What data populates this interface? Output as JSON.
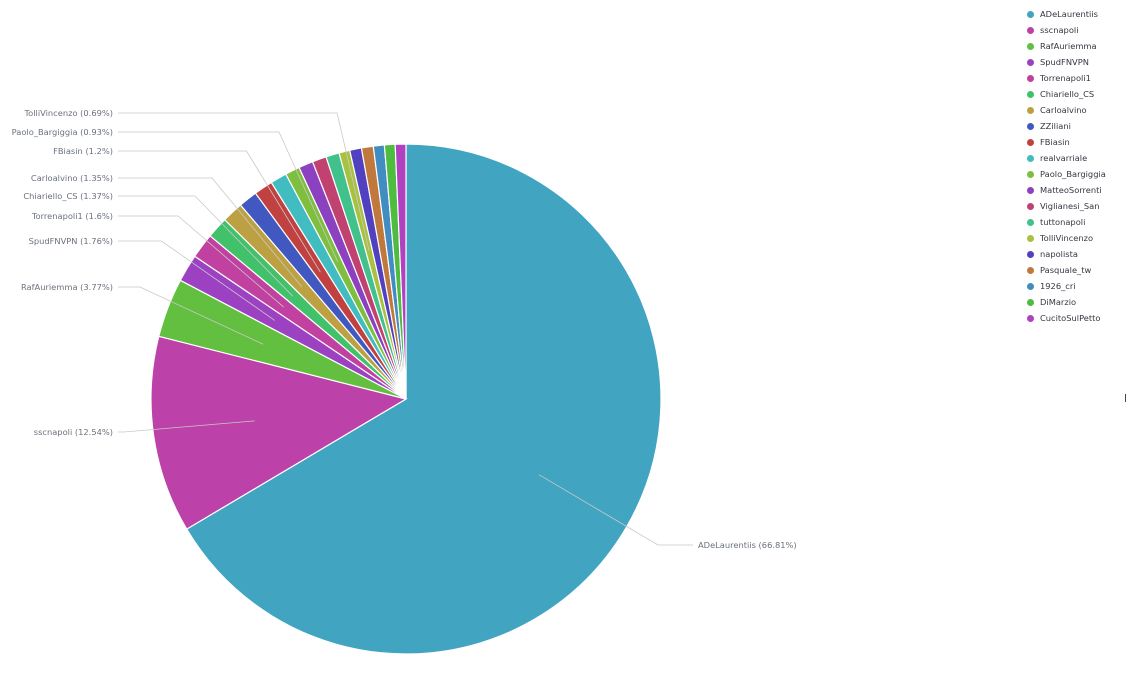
{
  "chart_data": {
    "type": "pie",
    "slices": [
      {
        "name": "ADeLaurentiis",
        "value": 66.81,
        "color": "#41A4C1",
        "label": "ADeLaurentiis (66.81%)"
      },
      {
        "name": "sscnapoli",
        "value": 12.54,
        "color": "#BC41A8",
        "label": "sscnapoli (12.54%)"
      },
      {
        "name": "RafAuriemma",
        "value": 3.77,
        "color": "#62BF3F",
        "label": "RafAuriemma (3.77%)"
      },
      {
        "name": "SpudFNVPN",
        "value": 1.76,
        "color": "#9C41C1",
        "label": "SpudFNVPN (1.76%)"
      },
      {
        "name": "Torrenapoli1",
        "value": 1.6,
        "color": "#C141A0",
        "label": "Torrenapoli1 (1.6%)"
      },
      {
        "name": "Chiariello_CS",
        "value": 1.37,
        "color": "#41C16A",
        "label": "Chiariello_CS (1.37%)"
      },
      {
        "name": "Carloalvino",
        "value": 1.35,
        "color": "#BCA041",
        "label": "Carloalvino (1.35%)"
      },
      {
        "name": "ZZiliani",
        "value": 1.2,
        "color": "#4158C1",
        "label": ""
      },
      {
        "name": "FBiasin",
        "value": 1.2,
        "color": "#C14141",
        "label": "FBiasin (1.2%)"
      },
      {
        "name": "realvarriale",
        "value": 1.05,
        "color": "#41BCC1",
        "label": ""
      },
      {
        "name": "Paolo_Bargiggia",
        "value": 0.93,
        "color": "#7EBF3F",
        "label": "Paolo_Bargiggia (0.93%)"
      },
      {
        "name": "MatteoSorrenti",
        "value": 0.92,
        "color": "#8C41C1",
        "label": ""
      },
      {
        "name": "Viglianesi_San",
        "value": 0.9,
        "color": "#C14170",
        "label": ""
      },
      {
        "name": "tuttonapoli",
        "value": 0.85,
        "color": "#41C18C",
        "label": ""
      },
      {
        "name": "TolliVincenzo",
        "value": 0.69,
        "color": "#A8C141",
        "label": "TolliVincenzo (0.69%)"
      },
      {
        "name": "napolista",
        "value": 0.75,
        "color": "#5141C1",
        "label": ""
      },
      {
        "name": "Pasquale_tw",
        "value": 0.75,
        "color": "#C1783C",
        "label": ""
      },
      {
        "name": "1926_cri",
        "value": 0.7,
        "color": "#418CC1",
        "label": ""
      },
      {
        "name": "DiMarzio",
        "value": 0.68,
        "color": "#4DBC3F",
        "label": ""
      },
      {
        "name": "CucitoSulPetto",
        "value": 0.68,
        "color": "#B041C1",
        "label": ""
      }
    ],
    "legend_position": "top-right"
  },
  "legend": {
    "items": [
      {
        "label": "ADeLaurentiis",
        "color": "#41A4C1"
      },
      {
        "label": "sscnapoli",
        "color": "#BC41A8"
      },
      {
        "label": "RafAuriemma",
        "color": "#62BF3F"
      },
      {
        "label": "SpudFNVPN",
        "color": "#9C41C1"
      },
      {
        "label": "Torrenapoli1",
        "color": "#C141A0"
      },
      {
        "label": "Chiariello_CS",
        "color": "#41C16A"
      },
      {
        "label": "Carloalvino",
        "color": "#BCA041"
      },
      {
        "label": "ZZiliani",
        "color": "#4158C1"
      },
      {
        "label": "FBiasin",
        "color": "#C14141"
      },
      {
        "label": "realvarriale",
        "color": "#41BCC1"
      },
      {
        "label": "Paolo_Bargiggia",
        "color": "#7EBF3F"
      },
      {
        "label": "MatteoSorrenti",
        "color": "#8C41C1"
      },
      {
        "label": "Viglianesi_San",
        "color": "#C14170"
      },
      {
        "label": "tuttonapoli",
        "color": "#41C18C"
      },
      {
        "label": "TolliVincenzo",
        "color": "#A8C141"
      },
      {
        "label": "napolista",
        "color": "#5141C1"
      },
      {
        "label": "Pasquale_tw",
        "color": "#C1783C"
      },
      {
        "label": "1926_cri",
        "color": "#418CC1"
      },
      {
        "label": "DiMarzio",
        "color": "#4DBC3F"
      },
      {
        "label": "CucitoSulPetto",
        "color": "#B041C1"
      }
    ]
  }
}
